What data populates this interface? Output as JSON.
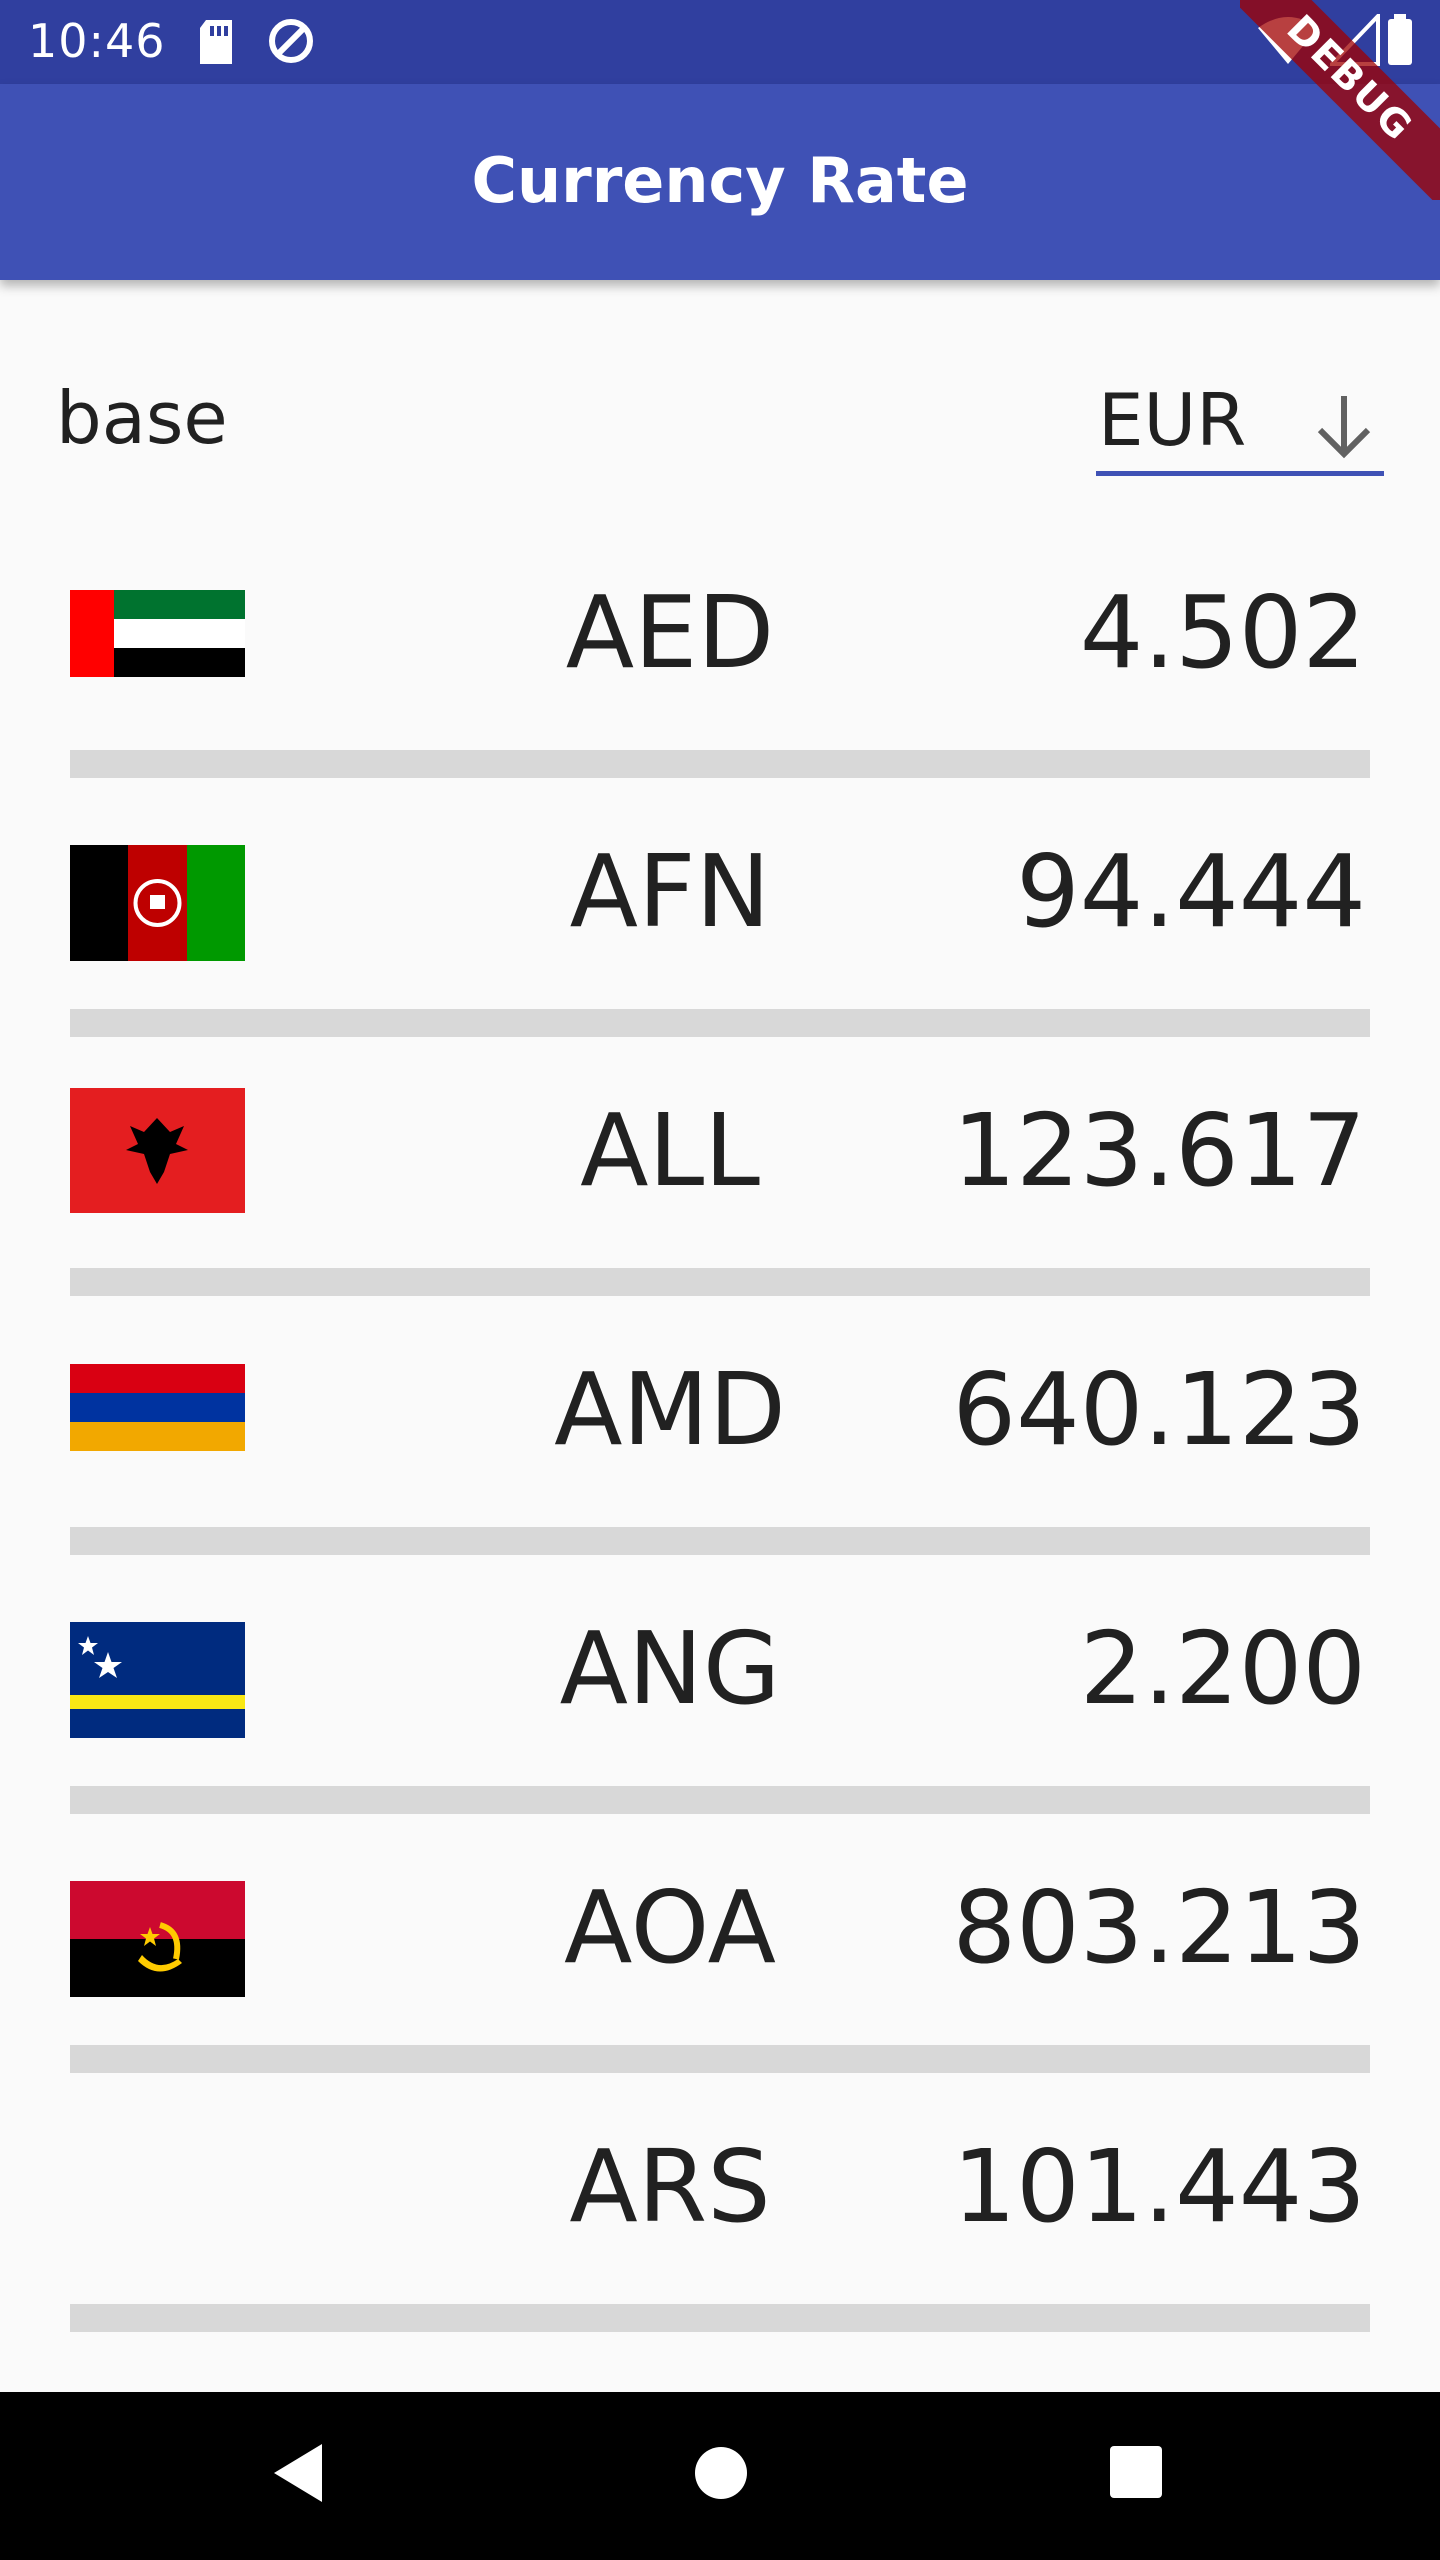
{
  "status_bar": {
    "time": "10:46"
  },
  "app_bar": {
    "title": "Currency Rate"
  },
  "debug_label": "DEBUG",
  "base": {
    "label": "base",
    "value": "EUR"
  },
  "rates": [
    {
      "code": "AED",
      "rate": "4.502",
      "flag": "uae"
    },
    {
      "code": "AFN",
      "rate": "94.444",
      "flag": "afghanistan"
    },
    {
      "code": "ALL",
      "rate": "123.617",
      "flag": "albania"
    },
    {
      "code": "AMD",
      "rate": "640.123",
      "flag": "armenia"
    },
    {
      "code": "ANG",
      "rate": "2.200",
      "flag": "curacao"
    },
    {
      "code": "AOA",
      "rate": "803.213",
      "flag": "angola"
    },
    {
      "code": "ARS",
      "rate": "101.443",
      "flag": "none"
    }
  ],
  "nav": {
    "back": "back-icon",
    "home": "home-icon",
    "recents": "recents-icon"
  }
}
